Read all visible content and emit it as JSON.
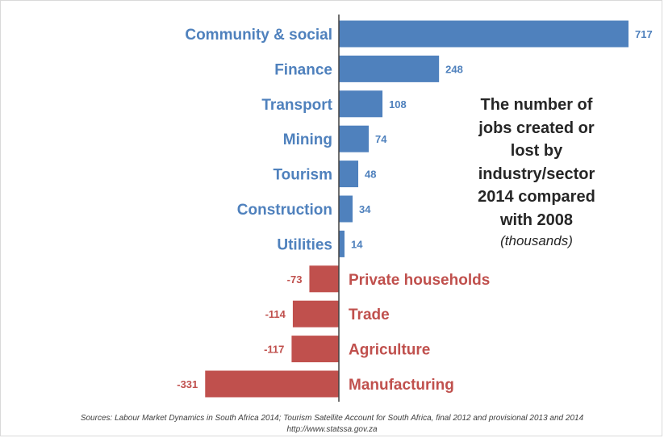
{
  "chart_data": {
    "type": "bar",
    "orientation": "horizontal",
    "categories": [
      "Community & social",
      "Finance",
      "Transport",
      "Mining",
      "Tourism",
      "Construction",
      "Utilities",
      "Private households",
      "Trade",
      "Agriculture",
      "Manufacturing"
    ],
    "values": [
      717,
      248,
      108,
      74,
      48,
      34,
      14,
      -73,
      -114,
      -117,
      -331
    ],
    "labels": [
      "717",
      "248",
      "108",
      "74",
      "48",
      "34",
      "14",
      "-73",
      "-114",
      "-117",
      "-331"
    ],
    "title": "The number of jobs created or lost by industry/sector 2014 compared with 2008",
    "title_lines": [
      "The number of",
      "jobs created or",
      "lost by",
      "industry/sector",
      "2014 compared",
      "with 2008"
    ],
    "subtitle": "(thousands)",
    "xlim": [
      -331,
      717
    ],
    "colors": {
      "positive": "#4f81bd",
      "negative": "#c0504d",
      "axis": "#404040"
    }
  },
  "source": {
    "line1": "Sources: Labour Market Dynamics in South Africa 2014; Tourism Satellite Account for South Africa, final 2012 and provisional 2013 and 2014",
    "line2": "http://www.statssa.gov.za"
  }
}
